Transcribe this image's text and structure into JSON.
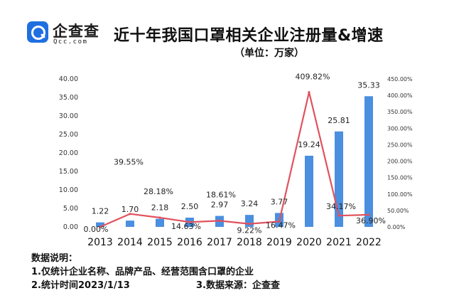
{
  "brand": {
    "name": "企查查",
    "domain": "Qcc.com",
    "accent": "#1f6fe0"
  },
  "header": {
    "title": "近十年我国口罩相关企业注册量&增速",
    "unit": "（单位：万家）"
  },
  "notes": {
    "heading": "数据说明：",
    "line1": "1.仅统计企业名称、品牌产品、经营范围含口罩的企业",
    "line2": "2.统计时间2023/1/13",
    "line3": "3.数据来源：企查查"
  },
  "chart_data": {
    "type": "bar",
    "categories": [
      "2013",
      "2014",
      "2015",
      "2016",
      "2017",
      "2018",
      "2019",
      "2020",
      "2021",
      "2022"
    ],
    "series": [
      {
        "type": "bar",
        "axis": "left",
        "color": "#4a8fe0",
        "values": [
          1.22,
          1.7,
          2.18,
          2.5,
          2.97,
          3.24,
          3.77,
          19.24,
          25.81,
          35.33
        ],
        "labels": [
          "1.22",
          "1.70",
          "2.18",
          "2.50",
          "2.97",
          "3.24",
          "3.77",
          "19.24",
          "25.81",
          "35.33"
        ]
      },
      {
        "type": "line",
        "axis": "right",
        "color": "#e0525e",
        "values": [
          0.0,
          39.55,
          28.18,
          14.63,
          18.61,
          9.22,
          16.47,
          409.82,
          34.17,
          36.9
        ],
        "labels": [
          "0.00%",
          "39.55%",
          "28.18%",
          "14.63%",
          "18.61%",
          "9.22%",
          "16.47%",
          "409.82%",
          "34.17%",
          "36.90%"
        ]
      }
    ],
    "y_left": {
      "ylim": [
        0,
        40
      ],
      "ticks": [
        "0.00",
        "5.00",
        "10.00",
        "15.00",
        "20.00",
        "25.00",
        "30.00",
        "35.00",
        "40.00"
      ]
    },
    "y_right": {
      "ylim": [
        0,
        450
      ],
      "ticks": [
        "0.00%",
        "50.00%",
        "100.00%",
        "150.00%",
        "200.00%",
        "250.00%",
        "300.00%",
        "350.00%",
        "400.00%",
        "450.00%"
      ]
    },
    "grid": false,
    "legend": "none"
  }
}
